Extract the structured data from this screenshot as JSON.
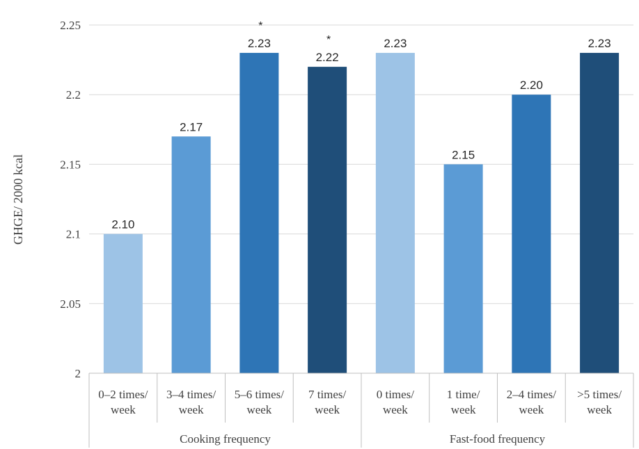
{
  "chart_data": {
    "type": "bar",
    "title": "",
    "ylabel": "GHGE/ 2000 kcal",
    "xlabel": "",
    "ylim": [
      2,
      2.25
    ],
    "yticks": [
      "2",
      "2.05",
      "2.1",
      "2.15",
      "2.2",
      "2.25"
    ],
    "grid": true,
    "groups": [
      {
        "name": "Cooking frequency",
        "bars": [
          {
            "category": [
              "0–2 times/",
              "week"
            ],
            "value": 2.1,
            "label": "2.10",
            "sig": "",
            "color": "#9dc3e6"
          },
          {
            "category": [
              "3–4 times/",
              "week"
            ],
            "value": 2.17,
            "label": "2.17",
            "sig": "",
            "color": "#5b9bd5"
          },
          {
            "category": [
              "5–6 times/",
              "week"
            ],
            "value": 2.23,
            "label": "2.23",
            "sig": "*",
            "color": "#2e75b6"
          },
          {
            "category": [
              "7 times/",
              "week"
            ],
            "value": 2.22,
            "label": "2.22",
            "sig": "*",
            "color": "#1f4e79"
          }
        ]
      },
      {
        "name": "Fast-food frequency",
        "bars": [
          {
            "category": [
              "0 times/",
              "week"
            ],
            "value": 2.23,
            "label": "2.23",
            "sig": "",
            "color": "#9dc3e6"
          },
          {
            "category": [
              "1 time/",
              "week"
            ],
            "value": 2.15,
            "label": "2.15",
            "sig": "",
            "color": "#5b9bd5"
          },
          {
            "category": [
              "2–4 times/",
              "week"
            ],
            "value": 2.2,
            "label": "2.20",
            "sig": "",
            "color": "#2e75b6"
          },
          {
            "category": [
              ">5 times/",
              "week"
            ],
            "value": 2.23,
            "label": "2.23",
            "sig": "",
            "color": "#1f4e79"
          }
        ]
      }
    ]
  }
}
